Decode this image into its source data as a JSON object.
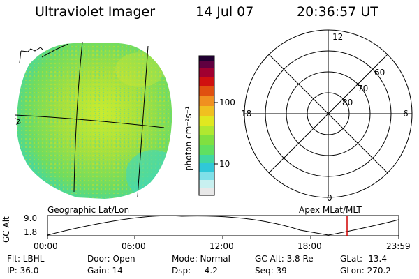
{
  "header": {
    "instrument": "Ultraviolet Imager",
    "date": "14 Jul 07",
    "time": "20:36:57 UT"
  },
  "colorbar": {
    "label": "photon cm⁻²s⁻¹",
    "ticks": [
      "100",
      "10"
    ],
    "scale": "log",
    "colors": [
      "#e8e8e8",
      "#80e0e8",
      "#30c8d8",
      "#40d8a0",
      "#60e060",
      "#a0e040",
      "#e8e020",
      "#f0a020",
      "#e06010",
      "#d02010",
      "#a00030",
      "#600040",
      "#200030"
    ]
  },
  "left_panel": {
    "caption": "Geographic Lat/Lon"
  },
  "polar_plot": {
    "caption": "Apex MLat/MLT",
    "mlt_labels": [
      "12",
      "18",
      "6",
      "0"
    ],
    "lat_labels": [
      "60",
      "70",
      "80"
    ]
  },
  "altitude_plot": {
    "ylabel": "GC Alt",
    "yticks": [
      "9.0",
      "1.8"
    ],
    "xticks": [
      "00:00",
      "06:00",
      "12:00",
      "18:00",
      "23:59"
    ],
    "marker_color": "#d00000"
  },
  "info": {
    "col1": [
      "Flt: LBHL",
      "IP: 36.0"
    ],
    "col2": [
      "Door: Open",
      "Gain: 14"
    ],
    "col3": [
      "Mode: Normal",
      "Dsp:    -4.2"
    ],
    "col4": [
      "GC Alt: 3.8 Re",
      "Seq: 39"
    ],
    "col5": [
      "GLat: -13.4",
      "GLon: 270.2"
    ]
  }
}
